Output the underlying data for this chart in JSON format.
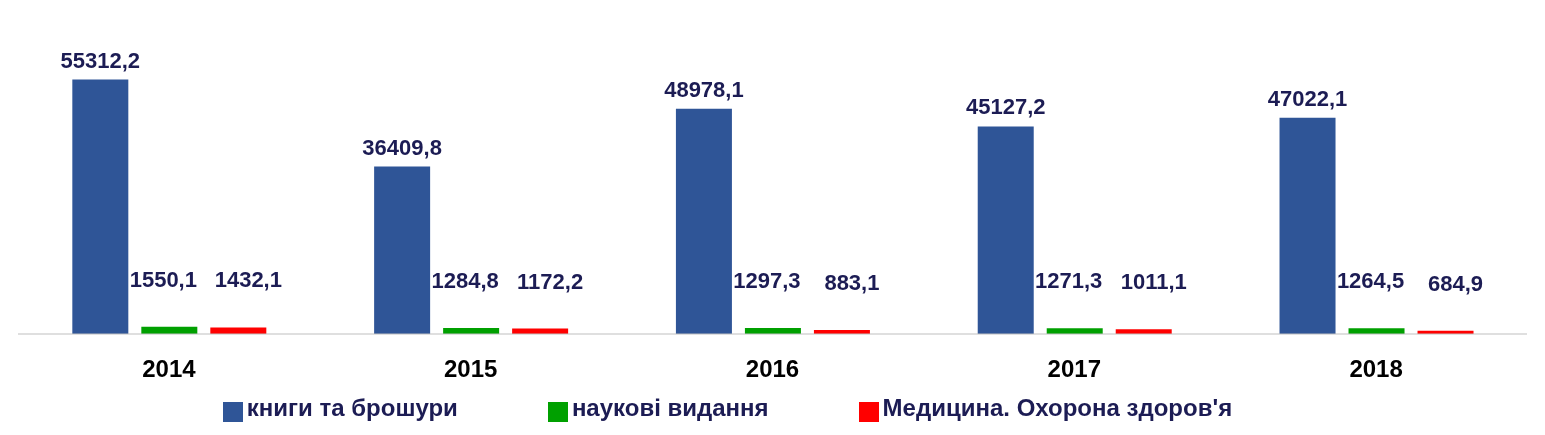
{
  "chart_data": {
    "type": "bar",
    "categories": [
      "2014",
      "2015",
      "2016",
      "2017",
      "2018"
    ],
    "series": [
      {
        "name": "книги та брошури",
        "color": "#2f5597",
        "values": [
          55312.2,
          36409.8,
          48978.1,
          45127.2,
          47022.1
        ],
        "value_labels": [
          "55312,2",
          "36409,8",
          "48978,1",
          "45127,2",
          "47022,1"
        ]
      },
      {
        "name": "наукові видання",
        "color": "#00a000",
        "values": [
          1550.1,
          1284.8,
          1297.3,
          1271.3,
          1264.5
        ],
        "value_labels": [
          "1550,1",
          "1284,8",
          "1297,3",
          "1271,3",
          "1264,5"
        ]
      },
      {
        "name": "Медицина. Охорона здоров'я",
        "color": "#ff0000",
        "values": [
          1432.1,
          1172.2,
          883.1,
          1011.1,
          684.9
        ],
        "value_labels": [
          "1432,1",
          "1172,2",
          "883,1",
          "1011,1",
          "684,9"
        ]
      }
    ],
    "tick_labels": "x",
    "grid": false,
    "legend": "bottom"
  }
}
